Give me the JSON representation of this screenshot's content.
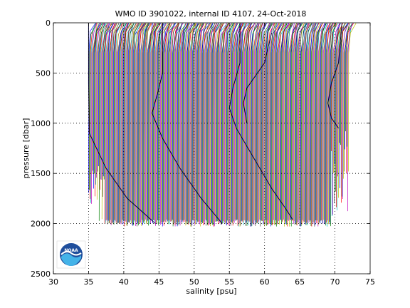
{
  "chart_data": {
    "type": "line",
    "title": "WMO ID 3901022, internal ID 4107, 24-Oct-2018",
    "xlabel": "salinity [psu]",
    "ylabel": "pressure [dbar]",
    "xlim": [
      30,
      75
    ],
    "ylim": [
      0,
      2500
    ],
    "y_reversed": true,
    "grid": true,
    "xticks": [
      30,
      35,
      40,
      45,
      50,
      55,
      60,
      65,
      70,
      75
    ],
    "yticks": [
      0,
      500,
      1000,
      1500,
      2000,
      2500
    ],
    "xtick_labels": [
      "30",
      "35",
      "40",
      "45",
      "50",
      "55",
      "60",
      "65",
      "70",
      "75"
    ],
    "ytick_labels": [
      "0",
      "500",
      "1000",
      "1500",
      "2000",
      "2500"
    ],
    "profile_offset_psu": 0.1,
    "profile_count": 370,
    "colors": [
      "#0000ff",
      "#008000",
      "#ff0000",
      "#00bfbf",
      "#bf00bf",
      "#bfbf00",
      "#404040"
    ],
    "dark_trace_color": "#000033",
    "dark_traces": [
      {
        "points": [
          [
            35.0,
            0
          ],
          [
            35.0,
            600
          ],
          [
            35.1,
            1100
          ],
          [
            37.5,
            1450
          ],
          [
            40.5,
            1750
          ],
          [
            44.5,
            2000
          ]
        ]
      },
      {
        "points": [
          [
            45.5,
            0
          ],
          [
            45.5,
            500
          ],
          [
            44.8,
            700
          ],
          [
            44.0,
            900
          ],
          [
            45.5,
            1150
          ],
          [
            48.0,
            1450
          ],
          [
            51.0,
            1750
          ],
          [
            54.0,
            2000
          ]
        ]
      },
      {
        "points": [
          [
            56.5,
            0
          ],
          [
            56.5,
            400
          ],
          [
            55.5,
            650
          ],
          [
            55.0,
            850
          ],
          [
            56.0,
            1050
          ],
          [
            58.5,
            1350
          ],
          [
            61.0,
            1650
          ],
          [
            63.0,
            1850
          ],
          [
            64.0,
            1960
          ]
        ]
      },
      {
        "points": [
          [
            61.0,
            100
          ],
          [
            60.0,
            400
          ],
          [
            57.5,
            650
          ],
          [
            57.0,
            800
          ],
          [
            57.5,
            1000
          ]
        ]
      },
      {
        "points": [
          [
            71.0,
            0
          ],
          [
            70.5,
            400
          ],
          [
            69.5,
            600
          ],
          [
            69.0,
            800
          ],
          [
            69.5,
            950
          ],
          [
            70.5,
            1050
          ]
        ]
      }
    ],
    "logo": {
      "label": "NOAA"
    }
  }
}
